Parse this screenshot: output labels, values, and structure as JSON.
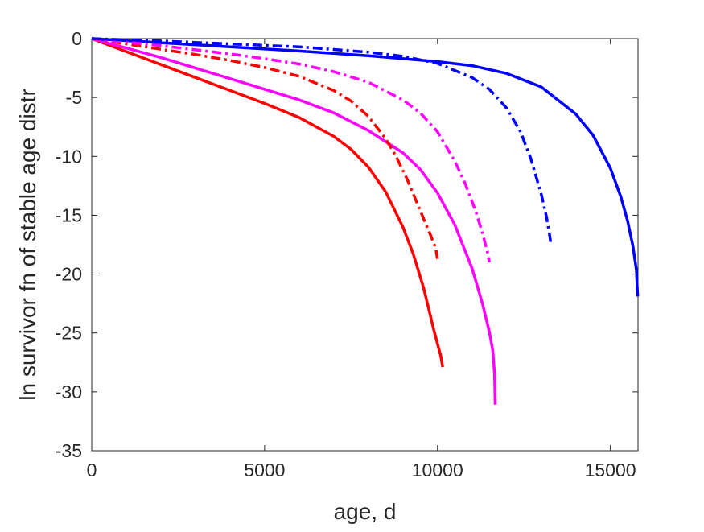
{
  "chart_data": {
    "type": "line",
    "title": "",
    "xlabel": "age, d",
    "ylabel": "ln survivor fn of stable age distr",
    "xlim": [
      0,
      15800
    ],
    "ylim": [
      -35,
      0
    ],
    "xticks": [
      0,
      5000,
      10000,
      15000
    ],
    "xtick_labels": [
      "0",
      "5000",
      "10000",
      "15000"
    ],
    "yticks": [
      0,
      -5,
      -10,
      -15,
      -20,
      -25,
      -30,
      -35
    ],
    "ytick_labels": [
      "0",
      "-5",
      "-10",
      "-15",
      "-20",
      "-25",
      "-30",
      "-35"
    ],
    "grid": false,
    "legend": false,
    "series": [
      {
        "color": "#ff0000",
        "style": "solid",
        "x": [
          0,
          1000,
          2000,
          3000,
          4000,
          5000,
          6000,
          7000,
          7500,
          8000,
          8500,
          9000,
          9300,
          9600,
          9900,
          10100,
          10150
        ],
        "y": [
          0,
          -1.1,
          -2.2,
          -3.3,
          -4.4,
          -5.5,
          -6.7,
          -8.3,
          -9.4,
          -10.9,
          -13.0,
          -16.0,
          -18.3,
          -21.2,
          -24.8,
          -27.0,
          -27.9
        ]
      },
      {
        "color": "#ff00ff",
        "style": "solid",
        "x": [
          0,
          1000,
          2000,
          3000,
          4000,
          5000,
          6000,
          7000,
          8000,
          9000,
          9500,
          10000,
          10500,
          11000,
          11300,
          11500,
          11600,
          11650,
          11670
        ],
        "y": [
          0,
          -0.8,
          -1.6,
          -2.5,
          -3.4,
          -4.3,
          -5.2,
          -6.3,
          -7.8,
          -9.7,
          -11.1,
          -13.1,
          -15.8,
          -19.5,
          -22.5,
          -24.9,
          -26.5,
          -28.5,
          -31.1
        ]
      },
      {
        "color": "#0000ff",
        "style": "solid",
        "x": [
          0,
          2000,
          4000,
          6000,
          8000,
          10000,
          11000,
          12000,
          13000,
          14000,
          14500,
          15000,
          15300,
          15500,
          15650,
          15750,
          15790
        ],
        "y": [
          0,
          -0.35,
          -0.7,
          -1.05,
          -1.45,
          -1.95,
          -2.3,
          -2.95,
          -4.1,
          -6.4,
          -8.2,
          -11.0,
          -13.4,
          -15.5,
          -17.6,
          -19.6,
          -21.9
        ]
      },
      {
        "color": "#ff0000",
        "style": "dashdot",
        "x": [
          0,
          1000,
          2000,
          3000,
          4000,
          5000,
          6000,
          7000,
          7500,
          8000,
          8500,
          8800,
          9100,
          9400,
          9600,
          9800,
          9950,
          10000
        ],
        "y": [
          0,
          -0.45,
          -0.9,
          -1.35,
          -1.85,
          -2.45,
          -3.2,
          -4.4,
          -5.3,
          -6.6,
          -8.5,
          -10.0,
          -11.8,
          -13.9,
          -15.3,
          -16.7,
          -17.8,
          -18.7
        ]
      },
      {
        "color": "#ff00ff",
        "style": "dashdot",
        "x": [
          0,
          1000,
          2000,
          3000,
          4000,
          5000,
          6000,
          7000,
          8000,
          9000,
          9500,
          10000,
          10500,
          10800,
          11100,
          11300,
          11450,
          11500
        ],
        "y": [
          0,
          -0.3,
          -0.6,
          -0.95,
          -1.3,
          -1.7,
          -2.15,
          -2.8,
          -3.7,
          -5.2,
          -6.3,
          -7.9,
          -10.4,
          -12.3,
          -14.6,
          -16.5,
          -18.2,
          -19.0
        ]
      },
      {
        "color": "#0000ff",
        "style": "dashdot",
        "x": [
          0,
          2000,
          4000,
          6000,
          8000,
          9000,
          10000,
          11000,
          11500,
          12000,
          12400,
          12700,
          13000,
          13150,
          13250,
          13280
        ],
        "y": [
          0,
          -0.2,
          -0.45,
          -0.7,
          -1.15,
          -1.5,
          -2.1,
          -3.3,
          -4.3,
          -5.9,
          -7.9,
          -10.2,
          -13.2,
          -15.1,
          -16.8,
          -17.5
        ]
      }
    ]
  }
}
